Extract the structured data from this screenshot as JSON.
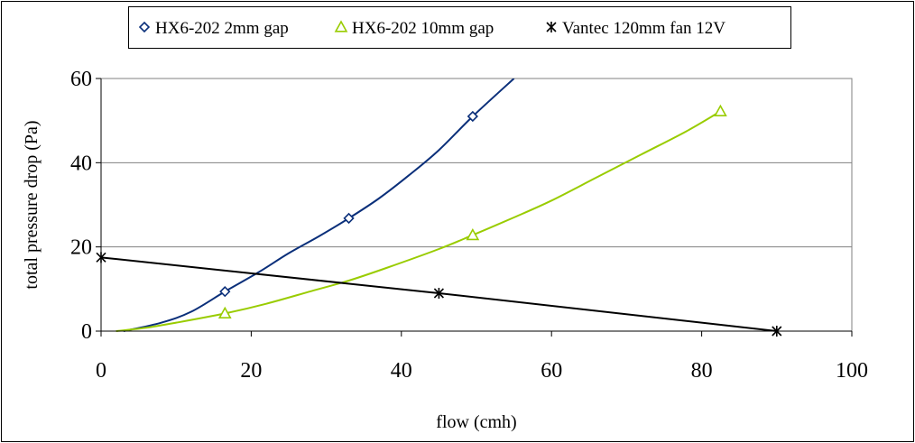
{
  "chart_data": {
    "type": "line",
    "title": "",
    "xlabel": "flow (cmh)",
    "ylabel": "total pressure drop (Pa)",
    "xlim": [
      0,
      100
    ],
    "ylim": [
      0,
      60
    ],
    "xticks": [
      "0",
      "20",
      "40",
      "60",
      "80",
      "100"
    ],
    "yticks": [
      "0",
      "20",
      "40",
      "60"
    ],
    "grid": "horizontal",
    "legend_position": "top",
    "series": [
      {
        "name": "HX6-202 2mm gap",
        "color": "#0a2f7a",
        "marker": "diamond",
        "curve": [
          [
            3,
            0
          ],
          [
            8,
            2
          ],
          [
            12,
            4.6
          ],
          [
            16.5,
            9.4
          ],
          [
            21,
            14
          ],
          [
            25,
            18.5
          ],
          [
            29,
            22.5
          ],
          [
            33,
            26.8
          ],
          [
            37,
            31.5
          ],
          [
            41,
            37
          ],
          [
            45,
            43
          ],
          [
            49.5,
            51
          ],
          [
            55,
            60
          ]
        ],
        "points": [
          [
            16.5,
            9.4
          ],
          [
            33,
            26.8
          ],
          [
            49.5,
            51
          ]
        ]
      },
      {
        "name": "HX6-202 10mm gap",
        "color": "#99cc00",
        "marker": "triangle",
        "curve": [
          [
            2,
            0
          ],
          [
            6,
            0.8
          ],
          [
            10,
            2
          ],
          [
            16.5,
            4.2
          ],
          [
            22,
            6.5
          ],
          [
            28,
            9.5
          ],
          [
            33,
            12
          ],
          [
            38,
            15
          ],
          [
            45,
            19.5
          ],
          [
            49.5,
            22.8
          ],
          [
            55,
            27
          ],
          [
            60,
            31
          ],
          [
            66,
            36.5
          ],
          [
            72,
            42
          ],
          [
            78,
            47.5
          ],
          [
            82.5,
            52.2
          ]
        ],
        "points": [
          [
            16.5,
            4.2
          ],
          [
            49.5,
            22.8
          ],
          [
            82.5,
            52.2
          ]
        ]
      },
      {
        "name": "Vantec 120mm fan 12V",
        "color": "#000000",
        "marker": "asterisk",
        "curve": [
          [
            0,
            17.5
          ],
          [
            45,
            9
          ],
          [
            90,
            0
          ]
        ],
        "points": [
          [
            0,
            17.5
          ],
          [
            45,
            9
          ],
          [
            90,
            0
          ]
        ]
      }
    ]
  }
}
